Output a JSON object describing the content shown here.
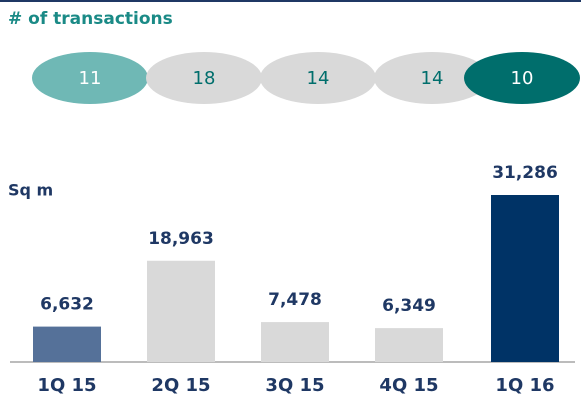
{
  "chart_data": {
    "type": "bar",
    "transactions": {
      "label": "# of transactions",
      "values": [
        11,
        18,
        14,
        14,
        10
      ],
      "colors": [
        "#6fb8b5",
        "#d9d9d9",
        "#d9d9d9",
        "#d9d9d9",
        "#006e6c"
      ],
      "text_colors": [
        "#ffffff",
        "#006e6c",
        "#006e6c",
        "#006e6c",
        "#ffffff"
      ]
    },
    "y_label": "Sq m",
    "categories": [
      "1Q 15",
      "2Q 15",
      "3Q 15",
      "4Q 15",
      "1Q 16"
    ],
    "values": [
      6632,
      18963,
      7478,
      6349,
      31286
    ],
    "value_labels": [
      "6,632",
      "18,963",
      "7,478",
      "6,349",
      "31,286"
    ],
    "colors": [
      "#557199",
      "#d9d9d9",
      "#d9d9d9",
      "#d9d9d9",
      "#003366"
    ]
  }
}
